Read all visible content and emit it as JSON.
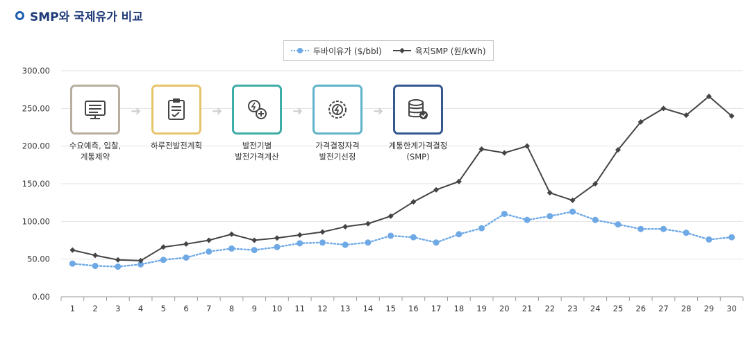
{
  "header": {
    "title": "SMP와 국제유가 비교"
  },
  "legend": [
    {
      "name": "두바이유가 ($/bbl)",
      "color": "#6ea9e6"
    },
    {
      "name": "육지SMP (원/kWh)",
      "color": "#444444"
    }
  ],
  "process": [
    {
      "label1": "수요예측, 입찰,",
      "label2": "계통제약",
      "color": "#b7ae9f",
      "icon": "monitor-icon"
    },
    {
      "label1": "하루전발전계획",
      "label2": "",
      "color": "#e7c46a",
      "icon": "clipboard-icon"
    },
    {
      "label1": "발전기별",
      "label2": "발전가격계산",
      "color": "#3eaca7",
      "icon": "coin-plus-icon"
    },
    {
      "label1": "가격결정자격",
      "label2": "발전기선정",
      "color": "#5fb2c8",
      "icon": "gear-bolt-icon"
    },
    {
      "label1": "계통한계가격결정",
      "label2": "(SMP)",
      "color": "#35568f",
      "icon": "database-check-icon"
    }
  ],
  "chart_data": {
    "type": "line",
    "title": "SMP와 국제유가 비교",
    "x": [
      1,
      2,
      3,
      4,
      5,
      6,
      7,
      8,
      9,
      10,
      11,
      12,
      13,
      14,
      15,
      16,
      17,
      18,
      19,
      20,
      21,
      22,
      23,
      24,
      25,
      26,
      27,
      28,
      29,
      30
    ],
    "y_ticks": [
      "0.00",
      "50.00",
      "100.00",
      "150.00",
      "200.00",
      "250.00",
      "300.00"
    ],
    "ylim": [
      0,
      300
    ],
    "grid": true,
    "legend_position": "top-center",
    "series": [
      {
        "name": "두바이유가 ($/bbl)",
        "style": "dotted",
        "color": "#6ea9e6",
        "values": [
          44,
          41,
          40,
          43,
          49,
          52,
          60,
          64,
          62,
          66,
          71,
          72,
          69,
          72,
          81,
          79,
          72,
          83,
          91,
          110,
          102,
          107,
          113,
          102,
          96,
          90,
          90,
          85,
          76,
          79
        ]
      },
      {
        "name": "육지SMP (원/kWh)",
        "style": "solid",
        "color": "#444444",
        "values": [
          62,
          55,
          49,
          48,
          66,
          70,
          75,
          83,
          75,
          78,
          82,
          86,
          93,
          97,
          107,
          126,
          142,
          153,
          196,
          191,
          200,
          138,
          128,
          150,
          195,
          232,
          250,
          241,
          266,
          240
        ]
      }
    ]
  }
}
